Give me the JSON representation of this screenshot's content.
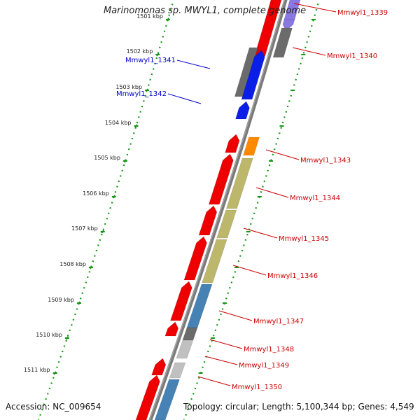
{
  "header": {
    "title": "Marinomonas sp. MWYL1, complete genome"
  },
  "footer": {
    "accession": "Accession: NC_009654",
    "topology": "Topology: circular; Length: 5,100,344 bp; Genes: 4,549"
  },
  "colors": {
    "red": "#ee0000",
    "blue": "#0b1ee8",
    "orange": "#ff8a00",
    "khaki": "#bdb76b",
    "steelblue": "#4682b4",
    "gray": "#6b6b6b",
    "lightgray": "#c0c0c0",
    "violet": "#8878e0",
    "backbone": "#7a7a7a",
    "tick_green": "#169816",
    "label_red": "#cc0000",
    "label_blue": "#0000cc"
  },
  "ticks": [
    {
      "label": "1501 kbp"
    },
    {
      "label": "1502 kbp"
    },
    {
      "label": "1503 kbp"
    },
    {
      "label": "1504 kbp"
    },
    {
      "label": "1505 kbp"
    },
    {
      "label": "1506 kbp"
    },
    {
      "label": "1507 kbp"
    },
    {
      "label": "1508 kbp"
    },
    {
      "label": "1509 kbp"
    },
    {
      "label": "1510 kbp"
    },
    {
      "label": "1511 kbp"
    }
  ],
  "gene_labels": [
    {
      "text": "Mmwyl1_1339",
      "color": "label_red"
    },
    {
      "text": "Mmwyl1_1340",
      "color": "label_red"
    },
    {
      "text": "Mmwyl1_1341",
      "color": "label_blue"
    },
    {
      "text": "Mmwyl1_1342",
      "color": "label_blue"
    },
    {
      "text": "Mmwyl1_1343",
      "color": "label_red"
    },
    {
      "text": "Mmwyl1_1344",
      "color": "label_red"
    },
    {
      "text": "Mmwyl1_1345",
      "color": "label_red"
    },
    {
      "text": "Mmwyl1_1346",
      "color": "label_red"
    },
    {
      "text": "Mmwyl1_1347",
      "color": "label_red"
    },
    {
      "text": "Mmwyl1_1348",
      "color": "label_red"
    },
    {
      "text": "Mmwyl1_1349",
      "color": "label_red"
    },
    {
      "text": "Mmwyl1_1350",
      "color": "label_red"
    }
  ]
}
